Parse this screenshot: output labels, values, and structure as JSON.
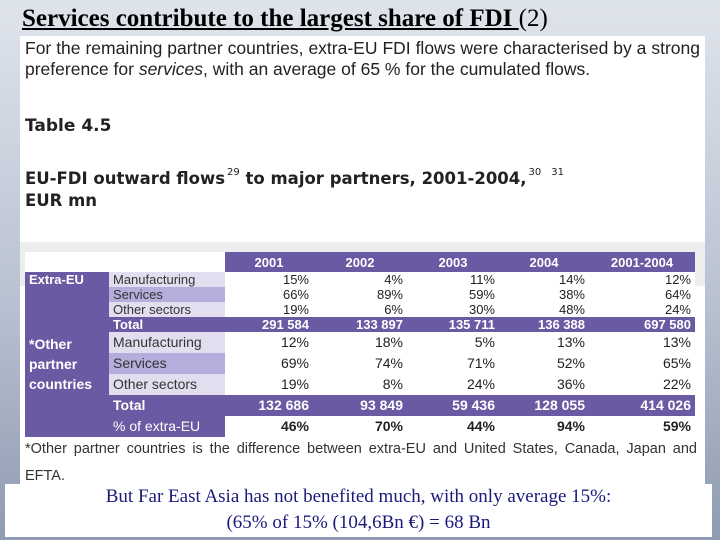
{
  "slide": {
    "title_underlined": "Services contribute to the largest share of FDI ",
    "title_suffix": "(2)"
  },
  "document": {
    "intro": "For the remaining partner countries, extra-EU FDI flows were characterised by a strong preference for services, with an average of 65 % for the cumulated flows.",
    "intro_part1": "For the remaining partner countries, extra-EU FDI flows were characterised by a strong preference for ",
    "intro_italic": "services",
    "intro_part2": ", with an average of 65 % for the cumulated flows.",
    "table_number": "Table 4.5",
    "caption_part1": "EU-FDI outward flows",
    "caption_sup1": "29",
    "caption_part2": " to major partners, 2001-2004,",
    "caption_sup2": "30",
    "caption_sup3": "31",
    "caption_part3": "EUR mn",
    "footnote": "*Other partner countries is the difference between extra-EU and United States, Canada, Japan and EFTA."
  },
  "table": {
    "columns": [
      "2001",
      "2002",
      "2003",
      "2004",
      "2001-2004"
    ],
    "groups": [
      {
        "label": "Extra-EU",
        "rows": [
          {
            "label": "Manufacturing",
            "values": [
              "15%",
              "4%",
              "11%",
              "14%",
              "12%"
            ]
          },
          {
            "label": "Services",
            "values": [
              "66%",
              "89%",
              "59%",
              "38%",
              "64%"
            ]
          },
          {
            "label": "Other sectors",
            "values": [
              "19%",
              "6%",
              "30%",
              "48%",
              "24%"
            ]
          },
          {
            "label": "Total",
            "values": [
              "291 584",
              "133 897",
              "135 711",
              "136 388",
              "697 580"
            ]
          }
        ]
      },
      {
        "label": "*Other partner countries",
        "label_lines": [
          "*Other",
          "partner",
          "countries"
        ],
        "rows": [
          {
            "label": "Manufacturing",
            "values": [
              "12%",
              "18%",
              "5%",
              "13%",
              "13%"
            ]
          },
          {
            "label": "Services",
            "values": [
              "69%",
              "74%",
              "71%",
              "52%",
              "65%"
            ]
          },
          {
            "label": "Other sectors",
            "values": [
              "19%",
              "8%",
              "24%",
              "36%",
              "22%"
            ]
          },
          {
            "label": "Total",
            "values": [
              "132 686",
              "93 849",
              "59 436",
              "128 055",
              "414 026"
            ]
          },
          {
            "label": "% of extra-EU",
            "values": [
              "46%",
              "70%",
              "44%",
              "94%",
              "59%"
            ]
          }
        ]
      }
    ]
  },
  "bottom": {
    "line1": "But Far East Asia has not benefited much, with only average 15%:",
    "line2": "(65% of 15% (104,6Bn €) = 68 Bn"
  }
}
